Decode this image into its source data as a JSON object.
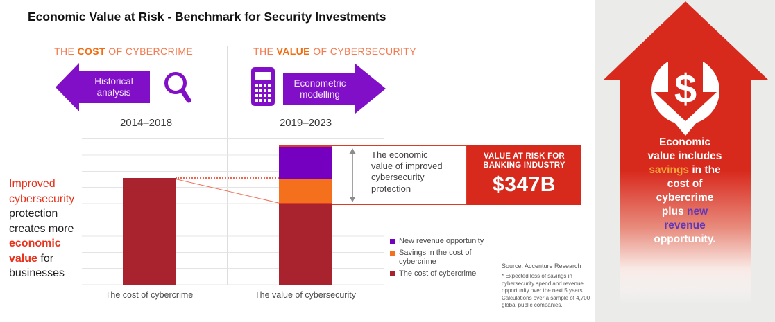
{
  "title": "Economic Value at Risk - Benchmark for Security Investments",
  "colors": {
    "dark_red": "#A8232E",
    "orange": "#F4701D",
    "purple": "#7500C0",
    "accent_red": "#D8291D",
    "connector_salmon": "#F0654E",
    "heading_orange": "#F5794E",
    "heading_orange_bold": "#F26B0F",
    "note_red": "#E8321C",
    "savings_amber": "#F2A33A",
    "new_revenue_purple": "#6038B8",
    "panel_bg": "#EBEBE9"
  },
  "sections": {
    "cost": {
      "heading_segments": [
        {
          "t": "THE ",
          "c": "#F5794E"
        },
        {
          "t": "COST",
          "c": "#F26B0F",
          "b": true
        },
        {
          "t": " OF CYBERCRIME",
          "c": "#F5794E"
        }
      ],
      "arrow_label": "Historical analysis",
      "period": "2014–2018"
    },
    "value": {
      "heading_segments": [
        {
          "t": "THE ",
          "c": "#F5794E"
        },
        {
          "t": "VALUE",
          "c": "#F26B0F",
          "b": true
        },
        {
          "t": " OF CYBERSECURITY",
          "c": "#F5794E"
        }
      ],
      "arrow_label": "Econometric modelling",
      "period": "2019–2023"
    }
  },
  "left_note": {
    "lines": [
      [
        {
          "t": "Improved",
          "c": "#E8321C"
        }
      ],
      [
        {
          "t": "cybersecurity",
          "c": "#E8321C"
        }
      ],
      [
        {
          "t": "protection",
          "c": "#1E1E1E"
        }
      ],
      [
        {
          "t": "creates more",
          "c": "#1E1E1E"
        }
      ],
      [
        {
          "t": "economic",
          "c": "#E8321C",
          "b": true
        }
      ],
      [
        {
          "t": "value",
          "c": "#E8321C",
          "b": true
        },
        {
          "t": " for",
          "c": "#1E1E1E"
        }
      ],
      [
        {
          "t": "businesses",
          "c": "#1E1E1E"
        }
      ]
    ]
  },
  "callout": {
    "text": "The economic value of improved cybersecurity protection",
    "risk_label_line1": "VALUE AT RISK FOR",
    "risk_label_line2": "BANKING INDUSTRY",
    "risk_value": "$347B"
  },
  "legend": {
    "items": [
      {
        "label": "New revenue opportunity",
        "color": "#7500C0"
      },
      {
        "label": "Savings in the cost of cybercrime",
        "color": "#F4701D"
      },
      {
        "label": "The cost of cybercrime",
        "color": "#A8232E"
      }
    ]
  },
  "source": {
    "line1": "Source: Accenture Research",
    "note": "* Expected loss of savings in cybersecurity spend and revenue opportunity over the next 5 years. Calculations over a sample of 4,700 global public companies."
  },
  "side_panel": {
    "lines": [
      [
        {
          "t": "Economic",
          "c": "#FFFFFF"
        }
      ],
      [
        {
          "t": "value includes",
          "c": "#FFFFFF"
        }
      ],
      [
        {
          "t": "savings",
          "c": "#F2A33A"
        },
        {
          "t": " in the",
          "c": "#FFFFFF"
        }
      ],
      [
        {
          "t": "cost of",
          "c": "#FFFFFF"
        }
      ],
      [
        {
          "t": "cybercrime",
          "c": "#FFFFFF"
        }
      ],
      [
        {
          "t": "plus ",
          "c": "#FFFFFF"
        },
        {
          "t": "new",
          "c": "#6038B8"
        }
      ],
      [
        {
          "t": "revenue",
          "c": "#6038B8"
        }
      ],
      [
        {
          "t": "opportunity.",
          "c": "#FFFFFF"
        }
      ]
    ]
  },
  "chart_data": {
    "type": "bar",
    "stacked": true,
    "title": "Economic Value at Risk - Benchmark for Security Investments",
    "categories": [
      "The cost of cybercrime",
      "The value of cybersecurity"
    ],
    "category_periods": [
      "2014–2018",
      "2019–2023"
    ],
    "series": [
      {
        "name": "The cost of cybercrime",
        "color": "#A8232E",
        "values": [
          100,
          76
        ]
      },
      {
        "name": "Savings in the cost of cybercrime",
        "color": "#F4701D",
        "values": [
          0,
          23
        ]
      },
      {
        "name": "New revenue opportunity",
        "color": "#7500C0",
        "values": [
          0,
          31
        ]
      }
    ],
    "units": "relative index (cost of cybercrime 2014–2018 = 100)",
    "ylim": [
      0,
      137
    ],
    "grid": true,
    "legend_position": "bottom-right",
    "annotations": [
      "The economic value of improved cybersecurity protection",
      "VALUE AT RISK FOR BANKING INDUSTRY $347B"
    ]
  }
}
